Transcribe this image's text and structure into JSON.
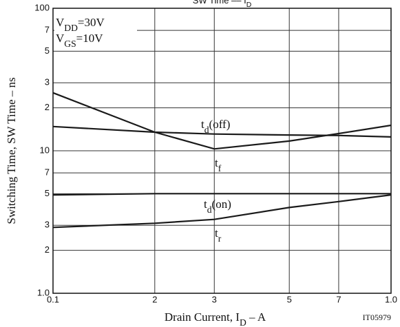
{
  "chart_data": {
    "type": "line",
    "title": [
      "SW Time  ––  I",
      {
        "sub": "D"
      }
    ],
    "x_label": [
      "Drain Current, I",
      {
        "sub": "D"
      },
      "  –  A"
    ],
    "y_label": "Switching Time, SW Time  –  ns",
    "code": "IT05979",
    "annotations": [
      [
        "V",
        {
          "sub": "DD"
        },
        "=30V"
      ],
      [
        "V",
        {
          "sub": "GS"
        },
        "=10V"
      ]
    ],
    "x": [
      0.1,
      0.2,
      0.3,
      0.5,
      0.7,
      1.0
    ],
    "series": [
      {
        "name": [
          "t",
          {
            "sub": "d"
          },
          "(off)"
        ],
        "color": "#1a1a1a",
        "values": [
          14.8,
          13.5,
          13.1,
          12.9,
          12.8,
          12.5
        ]
      },
      {
        "name": [
          "t",
          {
            "sub": "f"
          }
        ],
        "color": "#1a1a1a",
        "values": [
          25.5,
          13.5,
          10.3,
          11.7,
          13.2,
          15.1
        ]
      },
      {
        "name": [
          "t",
          {
            "sub": "d"
          },
          "(on)"
        ],
        "color": "#1a1a1a",
        "values": [
          4.9,
          5.0,
          5.0,
          5.0,
          5.0,
          5.0
        ]
      },
      {
        "name": [
          "t",
          {
            "sub": "r"
          }
        ],
        "color": "#1a1a1a",
        "values": [
          2.9,
          3.1,
          3.3,
          4.0,
          4.4,
          4.9
        ]
      }
    ],
    "log_x": true,
    "log_y": true,
    "xlim": [
      0.1,
      1.0
    ],
    "xticks": [
      0.1,
      {
        "value": 0.2,
        "label": "2"
      },
      {
        "value": 0.3,
        "label": "3"
      },
      {
        "value": 0.5,
        "label": "5"
      },
      {
        "value": 0.7,
        "label": "7"
      },
      {
        "value": 1.0,
        "label": "1.0"
      }
    ],
    "ylim": [
      1,
      100
    ],
    "yticks": [
      100,
      {
        "value": 70,
        "label": "7"
      },
      {
        "value": 50,
        "label": "5"
      },
      {
        "value": 30,
        "label": "3"
      },
      {
        "value": 20,
        "label": "2"
      },
      10,
      7,
      5,
      3,
      2,
      {
        "value": 1,
        "label": "1.0"
      }
    ],
    "grid": true
  }
}
